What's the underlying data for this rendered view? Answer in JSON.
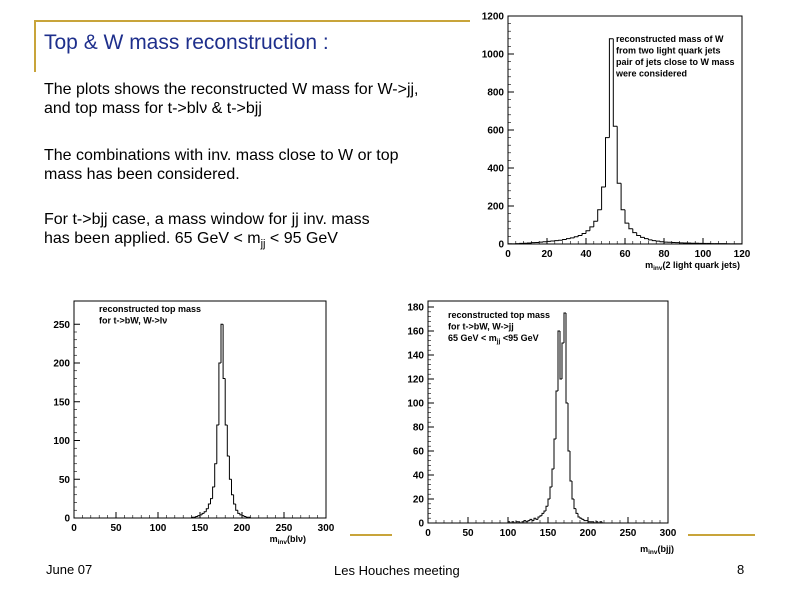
{
  "slide": {
    "title": "Top & W mass reconstruction :",
    "para1_line1": "The plots shows the reconstructed W mass for W->jj,",
    "para1_line2": "and top mass for t->blν & t->bjj",
    "para2_line1": "The combinations with inv. mass close to W or top",
    "para2_line2": "mass has been considered.",
    "para3_line1": "For t->bjj case, a mass window for jj inv. mass",
    "para3_line2_prefix": "has been applied. 65 GeV < m",
    "para3_line2_sub": "jj",
    "para3_line2_suffix": " < 95 GeV",
    "footer_left": "June 07",
    "footer_center": "Les Houches meeting",
    "footer_right": "8"
  },
  "colors": {
    "title": "#1e2f8c",
    "accent": "#c8a43a",
    "line": "#000000"
  },
  "chart_data": [
    {
      "type": "histogram",
      "id": "w_mass",
      "legend_lines": [
        "reconstructed mass of W",
        "from two light quark jets",
        "pair of jets close to W mass",
        "were considered"
      ],
      "xlabel_main": "m",
      "xlabel_sub": "inv",
      "xlabel_rest": "(2 light quark jets)",
      "xlim": [
        0,
        120
      ],
      "ylim": [
        0,
        1200
      ],
      "xticks": [
        0,
        20,
        40,
        60,
        80,
        100,
        120
      ],
      "xtick_labels": [
        "0",
        "20",
        "40",
        "60",
        "80",
        "100",
        "120"
      ],
      "yticks": [
        0,
        200,
        400,
        600,
        800,
        1000,
        1200
      ],
      "ytick_labels": [
        "0",
        "200",
        "400",
        "600",
        "800",
        "1000",
        "1200"
      ],
      "bins": {
        "start": 0,
        "width": 2,
        "values": [
          1,
          1,
          2,
          3,
          4,
          5,
          7,
          8,
          10,
          12,
          14,
          16,
          18,
          20,
          24,
          28,
          32,
          38,
          45,
          55,
          70,
          90,
          120,
          180,
          300,
          560,
          1080,
          620,
          320,
          180,
          110,
          80,
          60,
          45,
          35,
          28,
          22,
          18,
          15,
          12,
          10,
          9,
          8,
          7,
          6,
          5,
          5,
          4,
          4,
          3,
          3,
          3,
          2,
          2,
          2,
          2,
          1,
          1,
          1,
          1
        ]
      }
    },
    {
      "type": "histogram",
      "id": "top_mass_blnu",
      "legend_lines": [
        "reconstructed  top mass",
        "for t->bW, W->lν"
      ],
      "xlabel_main": "m",
      "xlabel_sub": "inv",
      "xlabel_rest": "(blν)",
      "xlim": [
        0,
        300
      ],
      "ylim": [
        0,
        280
      ],
      "xticks": [
        0,
        50,
        100,
        150,
        200,
        250,
        300
      ],
      "xtick_labels": [
        "0",
        "50",
        "100",
        "150",
        "200",
        "250",
        "300"
      ],
      "yticks": [
        0,
        50,
        100,
        150,
        200,
        250
      ],
      "ytick_labels": [
        "0",
        "50",
        "100",
        "150",
        "200",
        "250"
      ],
      "bins": {
        "start": 140,
        "width": 2.5,
        "values": [
          1,
          1,
          2,
          3,
          4,
          6,
          8,
          12,
          18,
          25,
          40,
          70,
          120,
          200,
          250,
          180,
          120,
          80,
          50,
          30,
          18,
          10,
          6,
          4,
          3,
          2,
          1,
          1
        ]
      }
    },
    {
      "type": "histogram",
      "id": "top_mass_bjj",
      "legend_lines": [
        "reconstructed top mass",
        "for t->bW, W->jj"
      ],
      "legend_window_prefix": "65 GeV < m",
      "legend_window_sub": "jj",
      "legend_window_suffix": " <95 GeV",
      "xlabel_main": "m",
      "xlabel_sub": "inv",
      "xlabel_rest": "(bjj)",
      "xlim": [
        0,
        300
      ],
      "ylim": [
        0,
        185
      ],
      "xticks": [
        0,
        50,
        100,
        150,
        200,
        250,
        300
      ],
      "xtick_labels": [
        "0",
        "50",
        "100",
        "150",
        "200",
        "250",
        "300"
      ],
      "yticks": [
        0,
        20,
        40,
        60,
        80,
        100,
        120,
        140,
        160,
        180
      ],
      "ytick_labels": [
        "0",
        "20",
        "40",
        "60",
        "80",
        "100",
        "120",
        "140",
        "160",
        "180"
      ],
      "bins": {
        "start": 100,
        "width": 2.5,
        "values": [
          1,
          0,
          1,
          0,
          1,
          1,
          0,
          1,
          2,
          1,
          2,
          3,
          2,
          4,
          3,
          5,
          6,
          8,
          10,
          14,
          20,
          30,
          45,
          70,
          110,
          160,
          120,
          150,
          175,
          100,
          60,
          35,
          20,
          12,
          8,
          5,
          4,
          3,
          2,
          2,
          1,
          1,
          1,
          0,
          1,
          0,
          1,
          0
        ]
      }
    }
  ]
}
